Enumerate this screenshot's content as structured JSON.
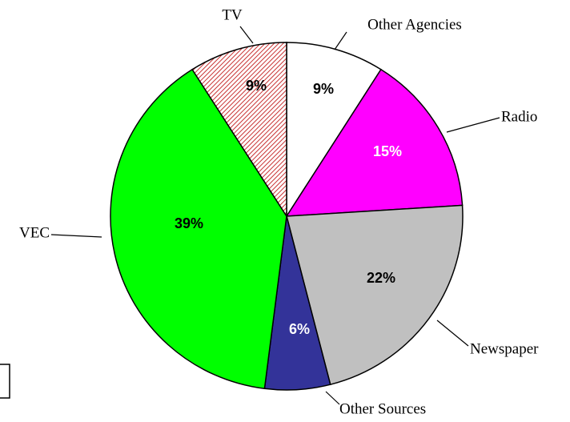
{
  "chart_data": {
    "type": "pie",
    "categories": [
      "Other Agencies",
      "Radio",
      "Newspaper",
      "Other Sources",
      "VEC",
      "TV"
    ],
    "values": [
      9,
      15,
      22,
      6,
      39,
      9
    ],
    "value_labels": [
      "9%",
      "15%",
      "22%",
      "6%",
      "39%",
      "9%"
    ],
    "colors": [
      "#ffffff",
      "#ff00ff",
      "#c0c0c0",
      "#333399",
      "#00ff00",
      "url(#hatch)"
    ]
  }
}
